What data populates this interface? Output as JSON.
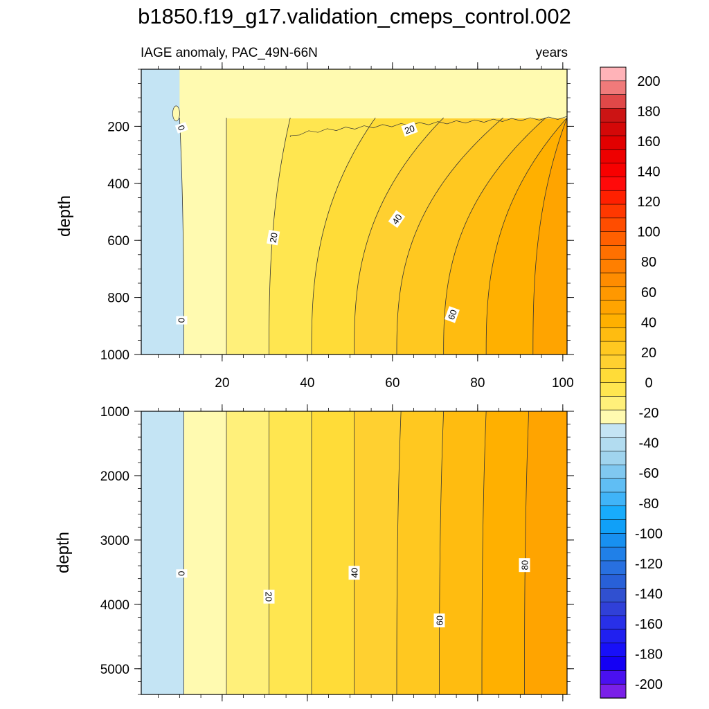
{
  "title": "b1850.f19_g17.validation_cmeps_control.002",
  "chart_data": [
    {
      "type": "heatmap",
      "panel": "top",
      "left_string": "IAGE anomaly, PAC_49N-66N",
      "right_string": "years",
      "ylabel": "depth",
      "xlim": [
        1,
        101
      ],
      "ylim": [
        0,
        1000
      ],
      "y_reversed": true,
      "xticks": [
        20,
        40,
        60,
        80,
        100
      ],
      "yticks": [
        200,
        400,
        600,
        800,
        1000
      ],
      "contour_levels": [
        0,
        10,
        20,
        30,
        40,
        50,
        60,
        70,
        80,
        90
      ],
      "surface_layer": {
        "depth_bottom_m": 170,
        "anomaly_years": 5
      },
      "isolines": [
        {
          "level": 0,
          "x_deep": 11,
          "x_surface": 10
        },
        {
          "level": 10,
          "x_deep": 21,
          "x_surface": 21
        },
        {
          "level": 20,
          "x_deep": 31,
          "x_surface": 36
        },
        {
          "level": 30,
          "x_deep": 41,
          "x_surface": 56
        },
        {
          "level": 40,
          "x_deep": 51,
          "x_surface": 72
        },
        {
          "level": 50,
          "x_deep": 61,
          "x_surface": 86
        },
        {
          "level": 60,
          "x_deep": 72,
          "x_surface": 96
        },
        {
          "level": 70,
          "x_deep": 82,
          "x_surface": 101
        },
        {
          "level": 80,
          "x_deep": 93,
          "x_surface": 101
        }
      ],
      "contour_labels": [
        {
          "text": "0",
          "x": 10.5,
          "y": 205,
          "angle": 70
        },
        {
          "text": "20",
          "x": 64,
          "y": 210,
          "angle": -20
        },
        {
          "text": "20",
          "x": 32,
          "y": 590,
          "angle": -80
        },
        {
          "text": "40",
          "x": 61,
          "y": 525,
          "angle": -55
        },
        {
          "text": "0",
          "x": 10.5,
          "y": 880,
          "angle": 90
        },
        {
          "text": "60",
          "x": 74,
          "y": 860,
          "angle": -70
        }
      ]
    },
    {
      "type": "heatmap",
      "panel": "bottom",
      "ylabel": "depth",
      "xlim": [
        1,
        101
      ],
      "ylim": [
        1000,
        5400
      ],
      "y_reversed": true,
      "yticks": [
        1000,
        2000,
        3000,
        4000,
        5000
      ],
      "contour_levels": [
        0,
        10,
        20,
        30,
        40,
        50,
        60,
        70,
        80,
        90
      ],
      "isolines": [
        {
          "level": 0,
          "x_deep": 11,
          "x_surface": 11
        },
        {
          "level": 10,
          "x_deep": 21,
          "x_surface": 21
        },
        {
          "level": 20,
          "x_deep": 31,
          "x_surface": 31
        },
        {
          "level": 30,
          "x_deep": 41,
          "x_surface": 41
        },
        {
          "level": 40,
          "x_deep": 51,
          "x_surface": 51
        },
        {
          "level": 50,
          "x_deep": 61,
          "x_surface": 62
        },
        {
          "level": 60,
          "x_deep": 71,
          "x_surface": 72
        },
        {
          "level": 70,
          "x_deep": 81,
          "x_surface": 82
        },
        {
          "level": 80,
          "x_deep": 91,
          "x_surface": 92
        }
      ],
      "contour_labels": [
        {
          "text": "0",
          "x": 10.5,
          "y": 3520,
          "angle": 90
        },
        {
          "text": "20",
          "x": 31,
          "y": 3880,
          "angle": 90
        },
        {
          "text": "40",
          "x": 51,
          "y": 3510,
          "angle": -90
        },
        {
          "text": "60",
          "x": 71,
          "y": 4250,
          "angle": -90
        },
        {
          "text": "80",
          "x": 91,
          "y": 3390,
          "angle": -90
        }
      ]
    }
  ],
  "colorbar": {
    "levels": [
      -200,
      -190,
      -180,
      -170,
      -160,
      -150,
      -140,
      -130,
      -120,
      -110,
      -100,
      -90,
      -80,
      -70,
      -60,
      -50,
      -40,
      -30,
      -20,
      -10,
      0,
      10,
      20,
      30,
      40,
      50,
      60,
      70,
      80,
      90,
      100,
      110,
      120,
      130,
      140,
      150,
      160,
      170,
      180,
      190,
      200
    ],
    "labels": [
      "200",
      "180",
      "160",
      "140",
      "120",
      "100",
      "80",
      "60",
      "40",
      "20",
      "0",
      "-20",
      "-40",
      "-60",
      "-80",
      "-100",
      "-120",
      "-140",
      "-160",
      "-180",
      "-200"
    ],
    "colors_top_to_bottom": [
      "#ffb3b8",
      "#f07a7a",
      "#e04848",
      "#cc1414",
      "#d40808",
      "#e20000",
      "#ee0000",
      "#f80000",
      "#ff0a0a",
      "#ff2000",
      "#ff3800",
      "#ff4d00",
      "#ff6000",
      "#ff7000",
      "#ff7f00",
      "#ff8c00",
      "#ff9800",
      "#ffa400",
      "#ffb000",
      "#ffbc10",
      "#ffc820",
      "#ffd030",
      "#ffdc38",
      "#ffe650",
      "#fff07a",
      "#fffab0",
      "#c4e4f4",
      "#b2dcf0",
      "#a0d4ee",
      "#80c8f0",
      "#60bef4",
      "#40b4f8",
      "#18acfc",
      "#10a0f8",
      "#1890f0",
      "#2080e8",
      "#2870e0",
      "#2860d8",
      "#3050d0",
      "#3040d8",
      "#2830e8",
      "#2020f0",
      "#1810f8",
      "#1400f4",
      "#4a10f0",
      "#7a20e8"
    ]
  }
}
